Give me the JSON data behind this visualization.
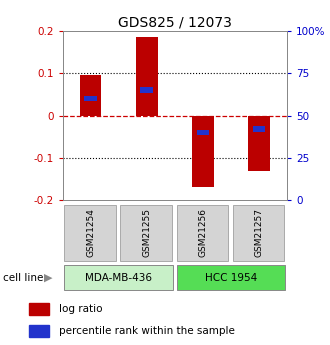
{
  "title": "GDS825 / 12073",
  "samples": [
    "GSM21254",
    "GSM21255",
    "GSM21256",
    "GSM21257"
  ],
  "log_ratios": [
    0.095,
    0.185,
    -0.17,
    -0.13
  ],
  "percentile_ranks": [
    0.6,
    0.65,
    0.4,
    0.42
  ],
  "cell_lines": [
    {
      "label": "MDA-MB-436",
      "samples": [
        0,
        1
      ],
      "color": "#c8f0c8"
    },
    {
      "label": "HCC 1954",
      "samples": [
        2,
        3
      ],
      "color": "#55dd55"
    }
  ],
  "ylim_left": [
    -0.2,
    0.2
  ],
  "bar_color": "#bb0000",
  "blue_color": "#2233cc",
  "bar_width": 0.38,
  "title_fontsize": 10,
  "axis_color_left": "#cc0000",
  "axis_color_right": "#0000cc",
  "zero_line_color": "#cc0000",
  "cell_line_label": "cell line",
  "legend_red_label": "log ratio",
  "legend_blue_label": "percentile rank within the sample"
}
